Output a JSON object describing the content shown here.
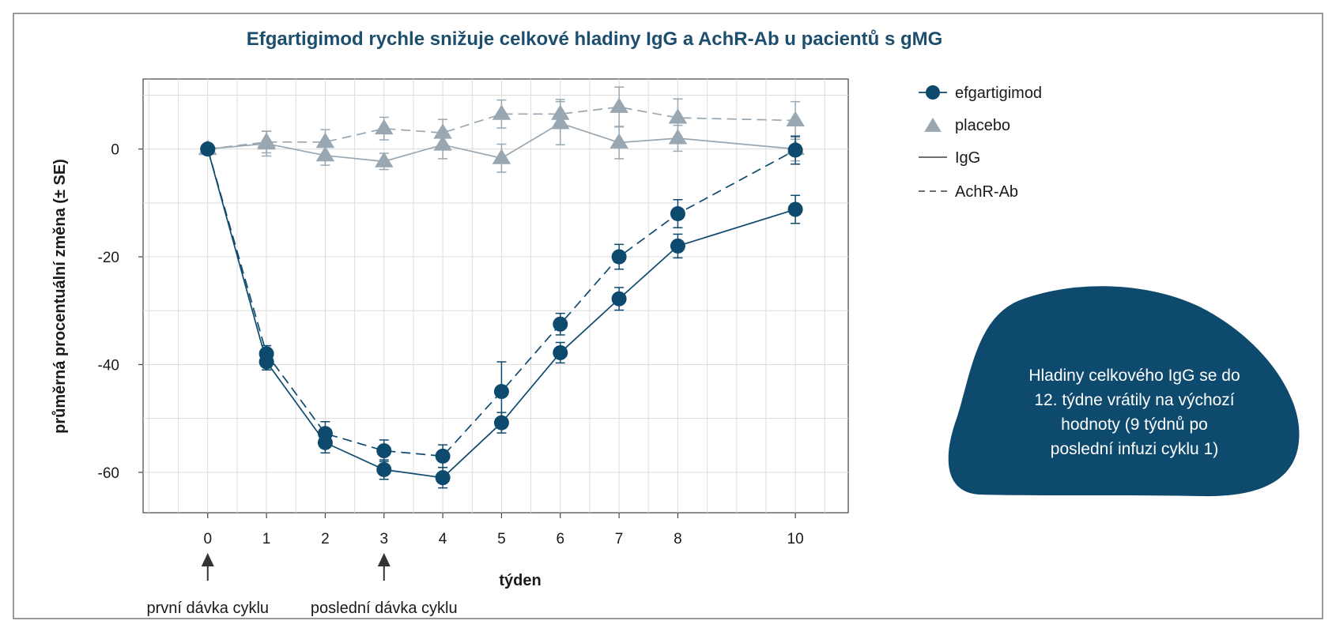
{
  "chart_data": {
    "type": "line",
    "title": "Efgartigimod rychle snižuje celkové hladiny IgG a AchR-Ab u pacientů s gMG",
    "xlabel": "týden",
    "ylabel": "průměrná procentuální změna (± SE)",
    "x": [
      0,
      1,
      2,
      3,
      4,
      5,
      6,
      7,
      8,
      10
    ],
    "xticks": [
      0,
      1,
      2,
      3,
      4,
      5,
      6,
      7,
      8,
      10
    ],
    "xlim": [
      -1.1,
      10.9
    ],
    "yticks": [
      0,
      -20,
      -40,
      -60
    ],
    "ylim": [
      -67.5,
      13
    ],
    "grid": true,
    "legend_position": "right",
    "series": [
      {
        "group": "efgartigimod",
        "marker": "circle",
        "line": "solid",
        "metric": "IgG",
        "color": "#0e4a6e",
        "values": [
          0,
          -39.5,
          -54.5,
          -59.5,
          -61,
          -50.8,
          -37.8,
          -27.8,
          -18,
          -11.2
        ],
        "errors": [
          0,
          1.5,
          1.9,
          1.8,
          1.9,
          1.9,
          1.9,
          2.1,
          2.2,
          2.6
        ]
      },
      {
        "group": "efgartigimod",
        "marker": "circle",
        "line": "dashed",
        "metric": "AchR-Ab",
        "color": "#0e4a6e",
        "values": [
          0,
          -38,
          -52.8,
          -56,
          -57,
          -45,
          -32.5,
          -20,
          -12,
          -0.2
        ],
        "errors": [
          0,
          1.5,
          2.2,
          2.0,
          2.1,
          5.5,
          2.0,
          2.3,
          2.6,
          2.6
        ]
      },
      {
        "group": "placebo",
        "marker": "triangle",
        "line": "solid",
        "metric": "IgG",
        "color": "#98a7b1",
        "values": [
          0,
          1,
          -1.2,
          -2.3,
          0.8,
          -1.7,
          4.8,
          1.2,
          2,
          0
        ],
        "errors": [
          0,
          2.3,
          1.8,
          1.5,
          2.6,
          2.6,
          4.0,
          3.0,
          2.4,
          2.2
        ]
      },
      {
        "group": "placebo",
        "marker": "triangle",
        "line": "dashed",
        "metric": "AchR-Ab",
        "color": "#98a7b1",
        "values": [
          0,
          1.3,
          1.3,
          3.8,
          3,
          6.5,
          6.5,
          7.8,
          5.8,
          5.3
        ],
        "errors": [
          0,
          2.0,
          2.3,
          2.1,
          2.5,
          2.6,
          2.7,
          3.7,
          3.5,
          3.5
        ]
      }
    ],
    "legend": [
      {
        "label": "efgartigimod",
        "kind": "marker-circle",
        "color": "#0e4a6e"
      },
      {
        "label": "placebo",
        "kind": "marker-triangle",
        "color": "#98a7b1"
      },
      {
        "label": "IgG",
        "kind": "line-solid",
        "color": "#1a1a1a"
      },
      {
        "label": "AchR-Ab",
        "kind": "line-dashed",
        "color": "#1a1a1a"
      }
    ],
    "annotations": [
      {
        "text": "první dávka cyklu",
        "x": 0
      },
      {
        "text": "poslední dávka cyklu",
        "x": 3
      }
    ],
    "callout": {
      "lines": [
        "Hladiny celkového IgG se do",
        "12. týdne vrátily na výchozí",
        "hodnoty  (9 týdnů po",
        "poslední infuzi cyklu 1)"
      ],
      "color": "#0e4a6e"
    }
  }
}
